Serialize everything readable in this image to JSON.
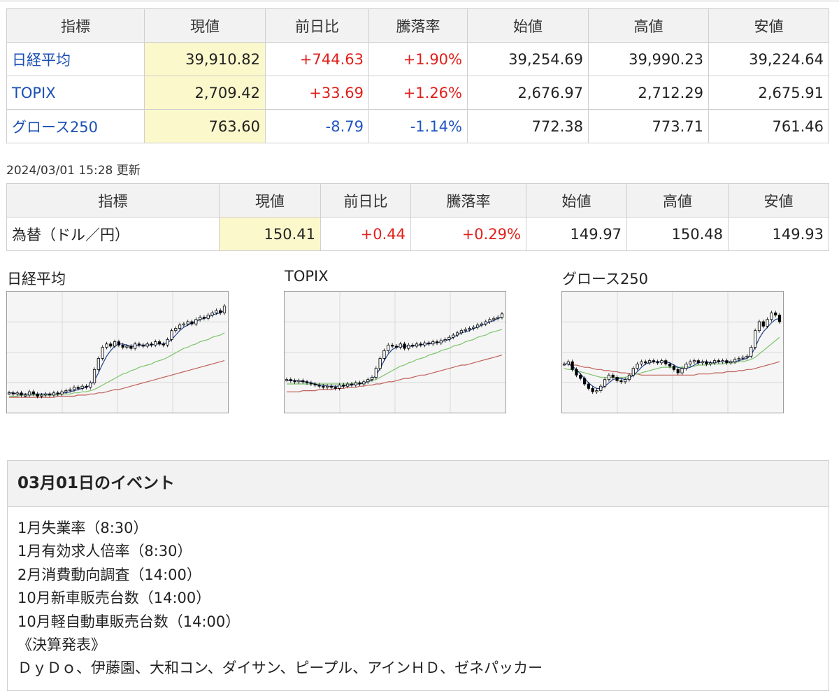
{
  "indices_table": {
    "headers": [
      "指標",
      "現値",
      "前日比",
      "騰落率",
      "始値",
      "高値",
      "安値"
    ],
    "rows": [
      {
        "name": "日経平均",
        "current": "39,910.82",
        "change": "+744.63",
        "rate": "+1.90%",
        "open": "39,254.69",
        "high": "39,990.23",
        "low": "39,224.64",
        "direction": "up"
      },
      {
        "name": "TOPIX",
        "current": "2,709.42",
        "change": "+33.69",
        "rate": "+1.26%",
        "open": "2,676.97",
        "high": "2,712.29",
        "low": "2,675.91",
        "direction": "up"
      },
      {
        "name": "グロース250",
        "current": "763.60",
        "change": "-8.79",
        "rate": "-1.14%",
        "open": "772.38",
        "high": "773.71",
        "low": "761.46",
        "direction": "down"
      }
    ]
  },
  "updated_text": "2024/03/01 15:28 更新",
  "fx_table": {
    "headers": [
      "指標",
      "現値",
      "前日比",
      "騰落率",
      "始値",
      "高値",
      "安値"
    ],
    "rows": [
      {
        "name": "為替（ドル／円）",
        "current": "150.41",
        "change": "+0.44",
        "rate": "+0.29%",
        "open": "149.97",
        "high": "150.48",
        "low": "149.93",
        "direction": "up"
      }
    ]
  },
  "colors": {
    "up": "#e0201b",
    "down": "#1f55c2",
    "link": "#1a4fb5",
    "highlight": "#fbf8cc",
    "ma_short": "#1f3f8f",
    "ma_mid": "#7cc46a",
    "ma_long": "#c0605a"
  },
  "chart_data": [
    {
      "type": "candlestick",
      "title": "日経平均",
      "close": [
        0.14,
        0.13,
        0.14,
        0.12,
        0.12,
        0.15,
        0.13,
        0.11,
        0.12,
        0.13,
        0.12,
        0.14,
        0.13,
        0.15,
        0.16,
        0.17,
        0.19,
        0.18,
        0.2,
        0.19,
        0.23,
        0.35,
        0.45,
        0.55,
        0.58,
        0.56,
        0.6,
        0.57,
        0.55,
        0.56,
        0.54,
        0.58,
        0.57,
        0.56,
        0.58,
        0.57,
        0.6,
        0.58,
        0.57,
        0.62,
        0.7,
        0.72,
        0.75,
        0.76,
        0.78,
        0.76,
        0.8,
        0.82,
        0.81,
        0.84,
        0.86,
        0.88,
        0.86,
        0.92
      ],
      "ma_short": [
        0.14,
        0.14,
        0.13,
        0.13,
        0.13,
        0.13,
        0.13,
        0.13,
        0.13,
        0.13,
        0.13,
        0.13,
        0.13,
        0.14,
        0.14,
        0.15,
        0.16,
        0.17,
        0.18,
        0.19,
        0.21,
        0.25,
        0.32,
        0.4,
        0.47,
        0.52,
        0.56,
        0.58,
        0.58,
        0.57,
        0.56,
        0.56,
        0.57,
        0.57,
        0.57,
        0.57,
        0.58,
        0.58,
        0.58,
        0.59,
        0.62,
        0.66,
        0.7,
        0.73,
        0.75,
        0.77,
        0.78,
        0.8,
        0.81,
        0.82,
        0.84,
        0.85,
        0.86,
        0.88
      ],
      "ma_mid": [
        0.11,
        0.11,
        0.11,
        0.12,
        0.12,
        0.12,
        0.12,
        0.12,
        0.12,
        0.12,
        0.12,
        0.12,
        0.12,
        0.13,
        0.13,
        0.13,
        0.14,
        0.14,
        0.15,
        0.15,
        0.16,
        0.17,
        0.19,
        0.21,
        0.23,
        0.25,
        0.27,
        0.29,
        0.31,
        0.32,
        0.34,
        0.35,
        0.37,
        0.38,
        0.39,
        0.4,
        0.42,
        0.43,
        0.44,
        0.46,
        0.48,
        0.5,
        0.52,
        0.54,
        0.55,
        0.57,
        0.58,
        0.6,
        0.61,
        0.62,
        0.64,
        0.65,
        0.66,
        0.68
      ],
      "ma_long": [
        0.1,
        0.1,
        0.1,
        0.1,
        0.1,
        0.1,
        0.1,
        0.1,
        0.1,
        0.1,
        0.1,
        0.1,
        0.11,
        0.11,
        0.11,
        0.11,
        0.11,
        0.12,
        0.12,
        0.12,
        0.13,
        0.13,
        0.14,
        0.14,
        0.15,
        0.16,
        0.17,
        0.17,
        0.18,
        0.19,
        0.2,
        0.21,
        0.22,
        0.23,
        0.24,
        0.25,
        0.26,
        0.27,
        0.28,
        0.29,
        0.3,
        0.31,
        0.32,
        0.33,
        0.34,
        0.35,
        0.36,
        0.37,
        0.38,
        0.39,
        0.4,
        0.41,
        0.42,
        0.43
      ]
    },
    {
      "type": "candlestick",
      "title": "TOPIX",
      "close": [
        0.26,
        0.25,
        0.24,
        0.25,
        0.24,
        0.23,
        0.22,
        0.21,
        0.2,
        0.19,
        0.2,
        0.19,
        0.18,
        0.21,
        0.2,
        0.22,
        0.21,
        0.23,
        0.22,
        0.24,
        0.26,
        0.28,
        0.36,
        0.45,
        0.52,
        0.57,
        0.56,
        0.55,
        0.58,
        0.54,
        0.57,
        0.56,
        0.58,
        0.57,
        0.59,
        0.58,
        0.6,
        0.59,
        0.61,
        0.62,
        0.64,
        0.66,
        0.68,
        0.7,
        0.71,
        0.72,
        0.73,
        0.75,
        0.76,
        0.78,
        0.8,
        0.81,
        0.82,
        0.85
      ],
      "ma_short": [
        0.25,
        0.25,
        0.25,
        0.25,
        0.24,
        0.24,
        0.23,
        0.22,
        0.21,
        0.21,
        0.2,
        0.2,
        0.2,
        0.2,
        0.2,
        0.21,
        0.21,
        0.22,
        0.22,
        0.23,
        0.24,
        0.26,
        0.3,
        0.36,
        0.43,
        0.49,
        0.53,
        0.55,
        0.56,
        0.56,
        0.56,
        0.56,
        0.57,
        0.57,
        0.58,
        0.58,
        0.59,
        0.59,
        0.6,
        0.61,
        0.62,
        0.64,
        0.66,
        0.68,
        0.69,
        0.7,
        0.72,
        0.73,
        0.75,
        0.76,
        0.78,
        0.79,
        0.81,
        0.82
      ],
      "ma_mid": [
        0.22,
        0.22,
        0.22,
        0.22,
        0.22,
        0.22,
        0.22,
        0.22,
        0.22,
        0.22,
        0.22,
        0.22,
        0.22,
        0.22,
        0.22,
        0.22,
        0.22,
        0.23,
        0.23,
        0.23,
        0.24,
        0.25,
        0.26,
        0.28,
        0.3,
        0.32,
        0.34,
        0.36,
        0.38,
        0.39,
        0.41,
        0.42,
        0.44,
        0.45,
        0.46,
        0.48,
        0.49,
        0.5,
        0.52,
        0.53,
        0.54,
        0.56,
        0.57,
        0.58,
        0.6,
        0.61,
        0.62,
        0.64,
        0.65,
        0.66,
        0.68,
        0.69,
        0.7,
        0.71
      ],
      "ma_long": [
        0.15,
        0.15,
        0.15,
        0.15,
        0.16,
        0.16,
        0.16,
        0.16,
        0.17,
        0.17,
        0.17,
        0.17,
        0.18,
        0.18,
        0.18,
        0.19,
        0.19,
        0.19,
        0.2,
        0.2,
        0.21,
        0.21,
        0.22,
        0.22,
        0.23,
        0.24,
        0.24,
        0.25,
        0.26,
        0.27,
        0.27,
        0.28,
        0.29,
        0.3,
        0.3,
        0.31,
        0.32,
        0.33,
        0.34,
        0.35,
        0.36,
        0.37,
        0.38,
        0.39,
        0.39,
        0.4,
        0.41,
        0.42,
        0.43,
        0.44,
        0.45,
        0.46,
        0.47,
        0.48
      ]
    },
    {
      "type": "candlestick",
      "title": "グロース250",
      "close": [
        0.4,
        0.42,
        0.35,
        0.3,
        0.27,
        0.22,
        0.18,
        0.15,
        0.16,
        0.2,
        0.26,
        0.3,
        0.28,
        0.25,
        0.24,
        0.26,
        0.3,
        0.36,
        0.4,
        0.42,
        0.41,
        0.43,
        0.42,
        0.41,
        0.43,
        0.4,
        0.38,
        0.35,
        0.32,
        0.36,
        0.4,
        0.42,
        0.43,
        0.41,
        0.42,
        0.4,
        0.41,
        0.43,
        0.42,
        0.43,
        0.41,
        0.42,
        0.44,
        0.45,
        0.46,
        0.47,
        0.55,
        0.7,
        0.78,
        0.74,
        0.8,
        0.86,
        0.84,
        0.78
      ],
      "ma_short": [
        0.4,
        0.4,
        0.38,
        0.35,
        0.31,
        0.27,
        0.23,
        0.2,
        0.18,
        0.18,
        0.2,
        0.23,
        0.26,
        0.27,
        0.27,
        0.26,
        0.27,
        0.3,
        0.33,
        0.37,
        0.4,
        0.41,
        0.42,
        0.42,
        0.42,
        0.42,
        0.41,
        0.39,
        0.37,
        0.36,
        0.36,
        0.37,
        0.39,
        0.41,
        0.42,
        0.42,
        0.41,
        0.41,
        0.42,
        0.42,
        0.42,
        0.42,
        0.42,
        0.43,
        0.44,
        0.45,
        0.48,
        0.55,
        0.63,
        0.69,
        0.73,
        0.77,
        0.8,
        0.81
      ],
      "ma_mid": [
        0.36,
        0.35,
        0.35,
        0.34,
        0.33,
        0.32,
        0.31,
        0.3,
        0.29,
        0.28,
        0.28,
        0.28,
        0.28,
        0.28,
        0.28,
        0.28,
        0.29,
        0.3,
        0.31,
        0.32,
        0.33,
        0.34,
        0.35,
        0.36,
        0.37,
        0.37,
        0.37,
        0.37,
        0.37,
        0.37,
        0.37,
        0.38,
        0.38,
        0.39,
        0.39,
        0.39,
        0.4,
        0.4,
        0.4,
        0.4,
        0.41,
        0.41,
        0.41,
        0.42,
        0.42,
        0.43,
        0.44,
        0.46,
        0.49,
        0.52,
        0.55,
        0.58,
        0.61,
        0.64
      ],
      "ma_long": [
        0.4,
        0.4,
        0.39,
        0.39,
        0.38,
        0.37,
        0.37,
        0.36,
        0.35,
        0.35,
        0.34,
        0.34,
        0.33,
        0.33,
        0.32,
        0.32,
        0.31,
        0.31,
        0.31,
        0.3,
        0.3,
        0.3,
        0.3,
        0.3,
        0.3,
        0.3,
        0.3,
        0.3,
        0.3,
        0.3,
        0.3,
        0.3,
        0.3,
        0.31,
        0.31,
        0.31,
        0.31,
        0.32,
        0.32,
        0.32,
        0.33,
        0.33,
        0.33,
        0.34,
        0.34,
        0.35,
        0.35,
        0.36,
        0.37,
        0.38,
        0.39,
        0.4,
        0.41,
        0.42
      ]
    }
  ],
  "events": {
    "title": "03月01日のイベント",
    "lines": [
      "1月失業率（8:30）",
      "1月有効求人倍率（8:30）",
      "2月消費動向調査（14:00）",
      "10月新車販売台数（14:00）",
      "10月軽自動車販売台数（14:00）",
      "《決算発表》",
      "ＤｙＤｏ、伊藤園、大和コン、ダイサン、ピープル、アインＨＤ、ゼネパッカー"
    ]
  }
}
